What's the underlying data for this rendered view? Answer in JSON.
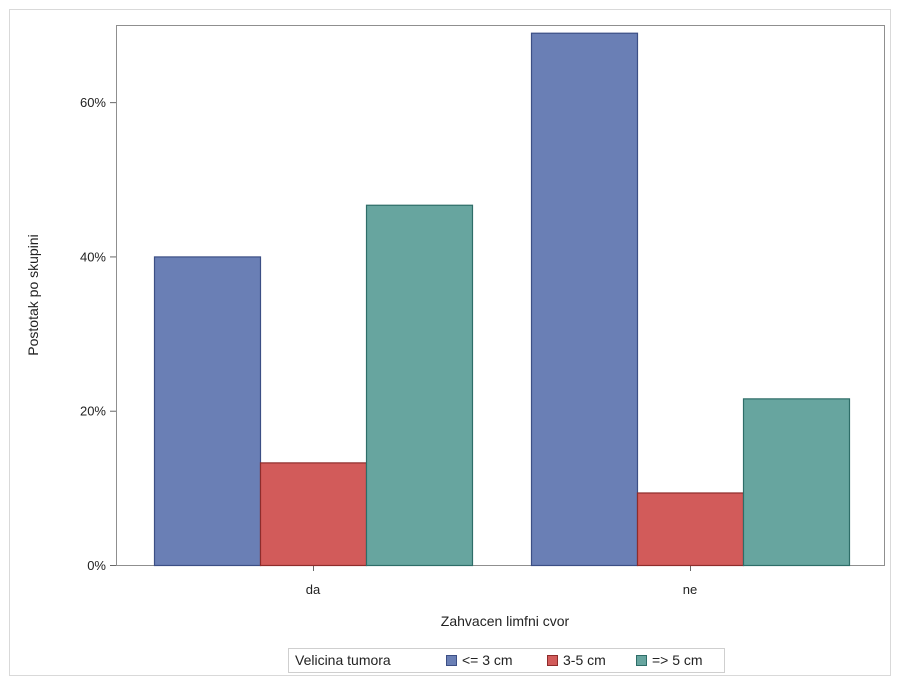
{
  "chart_data": {
    "type": "bar",
    "xlabel": "Zahvacen limfni cvor",
    "ylabel": "Postotak po skupini",
    "categories": [
      "da",
      "ne"
    ],
    "series": [
      {
        "name": "<= 3 cm",
        "values": [
          40,
          69
        ],
        "fill": "#6a7fb5",
        "stroke": "#3c4f85"
      },
      {
        "name": "3-5 cm",
        "values": [
          13.3,
          9.4
        ],
        "fill": "#d25b5a",
        "stroke": "#8e2c2b"
      },
      {
        "name": "=> 5 cm",
        "values": [
          46.7,
          21.6
        ],
        "fill": "#67a59f",
        "stroke": "#2e6d68"
      }
    ],
    "ylim": [
      0,
      70
    ],
    "yticks": [
      0,
      20,
      40,
      60
    ],
    "ytick_labels": [
      "0%",
      "20%",
      "40%",
      "60%"
    ],
    "grid": false,
    "legend": {
      "title": "Velicina tumora",
      "placement": "bottom-center"
    }
  }
}
